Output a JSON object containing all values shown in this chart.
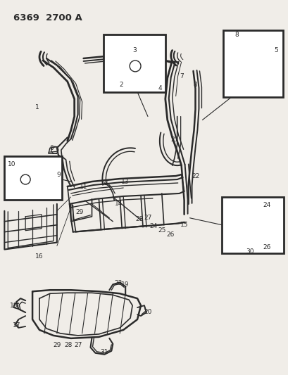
{
  "title": "6369  2700 A",
  "bg_color": "#f0ede8",
  "line_color": "#2a2a2a",
  "title_fontsize": 9.5,
  "label_fontsize": 6.5,
  "figw": 4.1,
  "figh": 5.33,
  "dpi": 100
}
